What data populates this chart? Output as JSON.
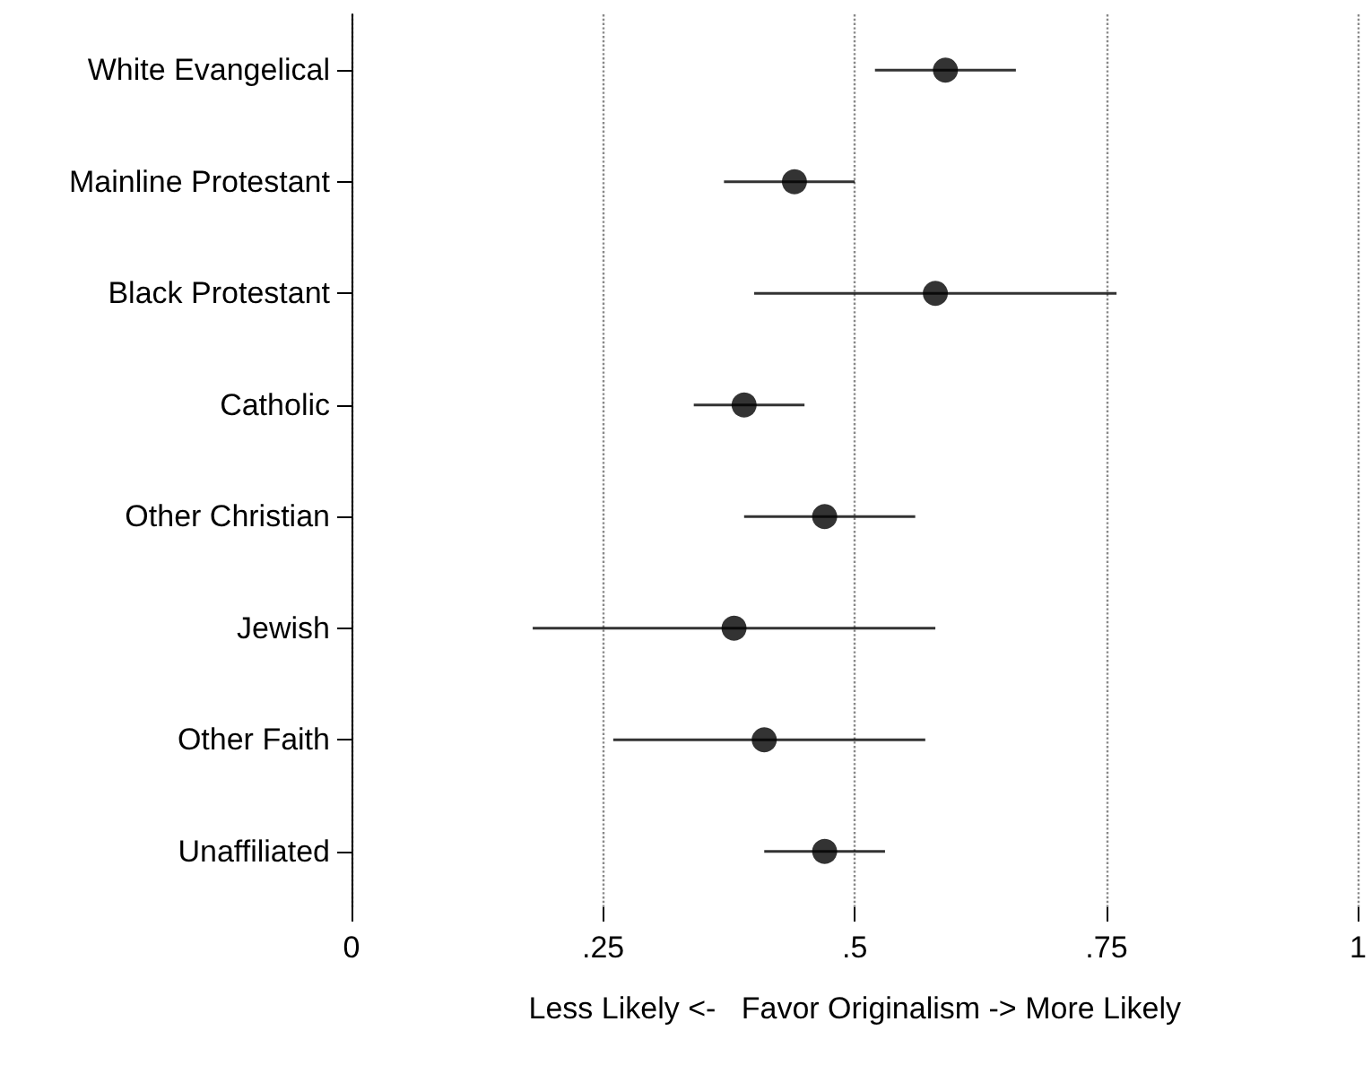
{
  "chart_data": {
    "type": "scatter",
    "orientation": "horizontal",
    "xlabel": "Less Likely <-   Favor Originalism -> More Likely",
    "categories": [
      "White Evangelical",
      "Mainline Protestant",
      "Black Protestant",
      "Catholic",
      "Other Christian",
      "Jewish",
      "Other Faith",
      "Unaffiliated"
    ],
    "values": [
      0.59,
      0.44,
      0.58,
      0.39,
      0.47,
      0.38,
      0.41,
      0.47
    ],
    "errors": [
      [
        0.52,
        0.66
      ],
      [
        0.37,
        0.5
      ],
      [
        0.4,
        0.76
      ],
      [
        0.34,
        0.45
      ],
      [
        0.39,
        0.56
      ],
      [
        0.18,
        0.58
      ],
      [
        0.26,
        0.57
      ],
      [
        0.41,
        0.53
      ]
    ],
    "color": "#000000",
    "xlim": [
      0,
      1
    ],
    "xticks": [
      0,
      {
        "value": 0.25,
        "label": ".25"
      },
      {
        "value": 0.5,
        "label": ".5"
      },
      {
        "value": 0.75,
        "label": ".75"
      },
      1
    ],
    "grid": "x",
    "marker": "circle"
  }
}
